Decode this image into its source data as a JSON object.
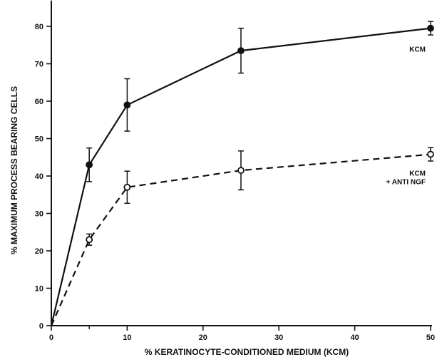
{
  "chart_data": {
    "type": "line",
    "xlabel": "% KERATINOCYTE-CONDITIONED MEDIUM (KCM)",
    "ylabel": "% MAXIMUM PROCESS BEARING CELLS",
    "xlim": [
      0,
      50
    ],
    "ylim": [
      0,
      85
    ],
    "x_ticks": [
      0,
      10,
      20,
      30,
      40,
      50
    ],
    "y_ticks": [
      0,
      10,
      20,
      30,
      40,
      50,
      60,
      70,
      80
    ],
    "grid": false,
    "series": [
      {
        "name": "KCM",
        "marker": "filled-circle",
        "line_style": "solid",
        "x": [
          0,
          5,
          10,
          25,
          50
        ],
        "y": [
          0,
          43,
          59,
          73.5,
          79.5
        ],
        "error": [
          0,
          4.5,
          7,
          6,
          1.8
        ]
      },
      {
        "name_lines": [
          "KCM",
          "+ ANTI NGF"
        ],
        "marker": "open-circle",
        "line_style": "dashed",
        "x": [
          0,
          5,
          10,
          25,
          50
        ],
        "y": [
          0,
          23,
          37,
          41.5,
          45.8
        ],
        "error": [
          0,
          1.5,
          4.3,
          5.2,
          1.8
        ]
      }
    ]
  }
}
